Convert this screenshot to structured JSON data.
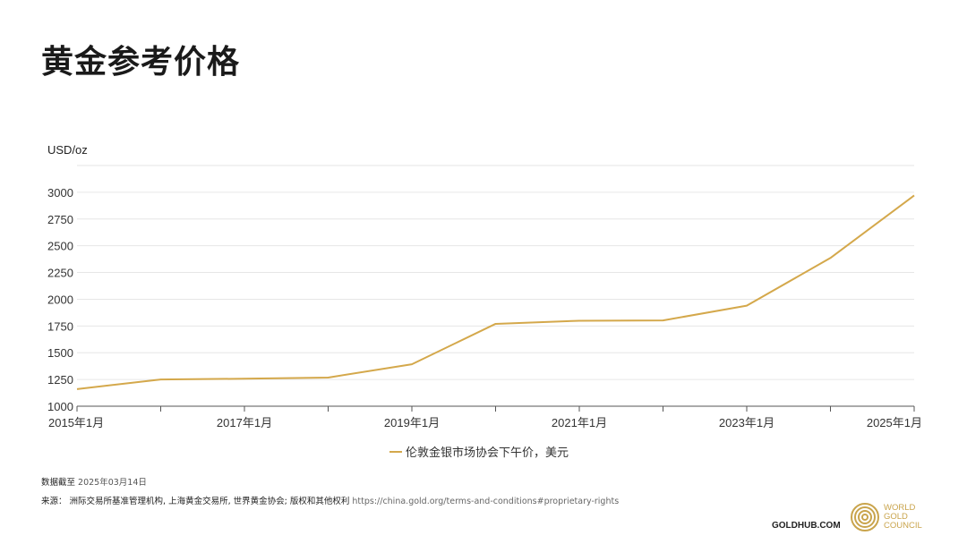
{
  "page": {
    "title": "黄金参考价格",
    "as_of_label": "数据截至",
    "as_of_value": "2025年03月14日",
    "source_label": "来源：",
    "source_text": "洲际交易所基准管理机构, 上海黄金交易所, 世界黄金协会; 版权和其他权利",
    "source_url": "https://china.gold.org/terms-and-conditions#proprietary-rights",
    "goldhub": "GOLDHUB.COM",
    "wgc_lines": [
      "WORLD",
      "GOLD",
      "COUNCIL"
    ]
  },
  "colors": {
    "series": "#d4a84b",
    "grid": "#e6e6e6",
    "axis": "#555555"
  },
  "chart_data": {
    "type": "line",
    "title": "",
    "ylabel": "USD/oz",
    "xlabel": "",
    "ylim": [
      1000,
      3250
    ],
    "yticks": [
      1000,
      1250,
      1500,
      1750,
      2000,
      2250,
      2500,
      2750,
      3000
    ],
    "x_ticks": [
      "2015年1月",
      "2016年1月",
      "2017年1月",
      "2018年1月",
      "2019年1月",
      "2020年1月",
      "2021年1月",
      "2022年1月",
      "2023年1月",
      "2024年1月",
      "2025年1月"
    ],
    "x_tick_labels_shown": [
      "2015年1月",
      "2017年1月",
      "2019年1月",
      "2021年1月",
      "2023年1月",
      "2025年1月"
    ],
    "grid": true,
    "legend_position": "bottom-center",
    "series": [
      {
        "name": "伦敦金银市场协会下午价，美元",
        "x": [
          "2015年1月",
          "2016年1月",
          "2017年1月",
          "2018年1月",
          "2019年1月",
          "2020年1月",
          "2021年1月",
          "2022年1月",
          "2023年1月",
          "2024年1月",
          "2025年1月"
        ],
        "values": [
          1160,
          1250,
          1257,
          1268,
          1392,
          1770,
          1799,
          1802,
          1940,
          2386,
          2970
        ]
      }
    ]
  }
}
